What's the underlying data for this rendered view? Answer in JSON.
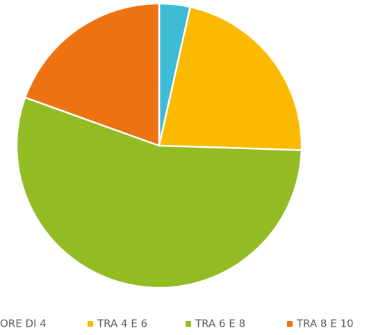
{
  "chart_data": {
    "type": "pie",
    "categories": [
      "ORE DI 4",
      "TRA 4 E 6",
      "TRA 6 E 8",
      "TRA 8 E 10"
    ],
    "values": [
      3.5,
      22,
      55,
      19.5
    ],
    "colors": [
      "#3ebcd6",
      "#fbb900",
      "#93bb24",
      "#ed7211"
    ],
    "legend": "bottom"
  }
}
